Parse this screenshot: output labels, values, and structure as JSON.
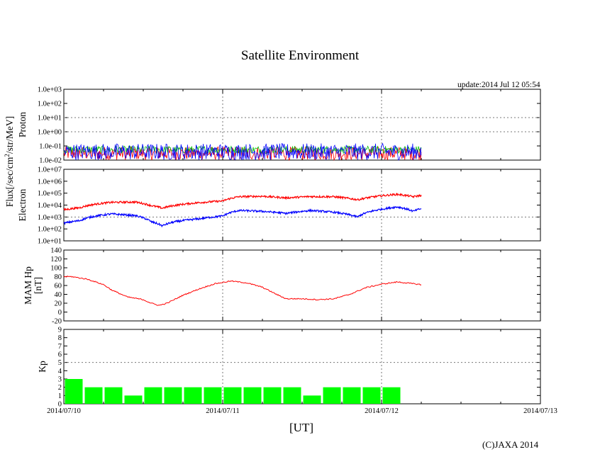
{
  "page": {
    "title": "Satellite Environment",
    "update": "update:2014 Jul 12 05:54",
    "copyright": "(C)JAXA 2014",
    "x_unit": "[UT]",
    "flux_label_main": "Flux[/sec/cm",
    "flux_label_sup": "2",
    "flux_label_tail": "/str/MeV]"
  },
  "chart_data": [
    {
      "type": "line",
      "panel": "proton",
      "ylabel": "Proton",
      "yscale": "log",
      "ylim": [
        0.01,
        1000
      ],
      "ytick_labels": [
        "1.0e-02",
        "1.0e-01",
        "1.0e+00",
        "1.0e+01",
        "1.0e+02",
        "1.0e+03"
      ],
      "xlim": [
        "2014/07/10",
        "2014/07/13"
      ],
      "x_range_days": [
        0,
        2.25
      ],
      "series": [
        {
          "color": "#ff0000",
          "level": 0.03,
          "noise_lo": 0.01,
          "noise_hi": 0.09
        },
        {
          "color": "#00c000",
          "level": 0.06,
          "noise_lo": 0.03,
          "noise_hi": 0.1
        },
        {
          "color": "#0000ff",
          "level": 0.05,
          "noise_lo": 0.01,
          "noise_hi": 0.15
        }
      ]
    },
    {
      "type": "line",
      "panel": "electron",
      "ylabel": "Electron",
      "yscale": "log",
      "ylim": [
        10,
        10000000
      ],
      "ytick_labels": [
        "1.0e+01",
        "1.0e+02",
        "1.0e+03",
        "1.0e+04",
        "1.0e+05",
        "1.0e+06",
        "1.0e+07"
      ],
      "xlim": [
        "2014/07/10",
        "2014/07/13"
      ],
      "series": [
        {
          "color": "#ff0000",
          "x": [
            0,
            0.1,
            0.2,
            0.3,
            0.45,
            0.55,
            0.62,
            0.7,
            0.85,
            1.0,
            1.1,
            1.25,
            1.4,
            1.55,
            1.7,
            1.85,
            2.0,
            2.1,
            2.2,
            2.25
          ],
          "y": [
            4000,
            6000,
            12000,
            17000,
            18000,
            9000,
            5500,
            9500,
            16000,
            22000,
            50000,
            55000,
            40000,
            52000,
            50000,
            28000,
            60000,
            80000,
            50000,
            65000
          ]
        },
        {
          "color": "#0000ff",
          "x": [
            0,
            0.1,
            0.2,
            0.3,
            0.45,
            0.55,
            0.62,
            0.7,
            0.85,
            1.0,
            1.1,
            1.25,
            1.4,
            1.55,
            1.7,
            1.85,
            2.0,
            2.1,
            2.2,
            2.25
          ],
          "y": [
            300,
            500,
            1200,
            1800,
            1300,
            400,
            180,
            400,
            700,
            1200,
            3500,
            3000,
            2000,
            3500,
            2500,
            1000,
            4500,
            7000,
            3000,
            5000
          ]
        }
      ]
    },
    {
      "type": "line",
      "panel": "mam_hp",
      "ylabel": "MAM Hp [nT]",
      "ylim": [
        -20,
        140
      ],
      "ytick_labels": [
        "-20",
        "0",
        "20",
        "40",
        "60",
        "80",
        "100",
        "120",
        "140"
      ],
      "xlim": [
        "2014/07/10",
        "2014/07/13"
      ],
      "series": [
        {
          "color": "#ff0000",
          "x": [
            0,
            0.05,
            0.15,
            0.25,
            0.3,
            0.4,
            0.5,
            0.55,
            0.6,
            0.65,
            0.75,
            0.85,
            0.95,
            1.05,
            1.15,
            1.25,
            1.35,
            1.4,
            1.5,
            1.6,
            1.7,
            1.8,
            1.9,
            2.0,
            2.1,
            2.2,
            2.25
          ],
          "y": [
            80,
            80,
            74,
            62,
            50,
            34,
            28,
            20,
            15,
            20,
            38,
            52,
            64,
            70,
            66,
            56,
            38,
            30,
            30,
            28,
            30,
            40,
            55,
            63,
            68,
            64,
            62
          ]
        }
      ]
    },
    {
      "type": "bar",
      "panel": "kp",
      "ylabel": "Kp",
      "ylim": [
        0,
        9
      ],
      "ytick_labels": [
        "0",
        "1",
        "2",
        "3",
        "4",
        "5",
        "6",
        "7",
        "8",
        "9"
      ],
      "xlim": [
        "2014/07/10",
        "2014/07/13"
      ],
      "xtick_labels": [
        "2014/07/10",
        "2014/07/11",
        "2014/07/12",
        "2014/07/13"
      ],
      "bar_width_days": 0.125,
      "values": [
        3,
        2,
        2,
        1,
        2,
        2,
        2,
        2,
        2,
        2,
        2,
        2,
        1,
        2,
        2,
        2,
        2
      ],
      "color": "#00ff00"
    }
  ]
}
